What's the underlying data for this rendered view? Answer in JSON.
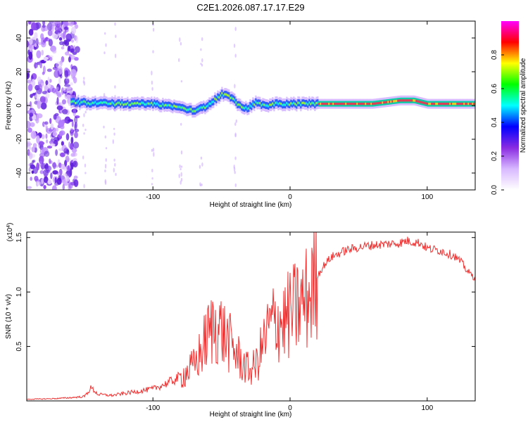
{
  "title": "C2E1.2026.087.17.17.E29",
  "chart_data": [
    {
      "type": "heatmap",
      "title": "C2E1.2026.087.17.17.E29",
      "xlabel": "Height of straight line (km)",
      "ylabel": "Frequency (Hz)",
      "xlim": [
        -192,
        135
      ],
      "ylim": [
        -50,
        50
      ],
      "x_ticks": [
        -100,
        0,
        100
      ],
      "y_ticks": [
        -40,
        -20,
        0,
        20,
        40
      ],
      "colorbar": {
        "label": "Normalized spectral amplitude",
        "range": [
          0,
          1
        ],
        "ticks": [
          0.0,
          0.2,
          0.4,
          0.6,
          0.8
        ],
        "tick_labels": [
          "0.0",
          "0.2",
          "0.4",
          "0.6",
          "0.8"
        ],
        "colors": [
          "#ffffff",
          "#d8b8ff",
          "#8a2be2",
          "#0000ff",
          "#00ffff",
          "#00ff00",
          "#ffff00",
          "#ff0000",
          "#ff00ff"
        ]
      },
      "ridge": {
        "x": [
          -160,
          -130,
          -100,
          -80,
          -70,
          -60,
          -50,
          -45,
          -40,
          -35,
          -30,
          -25,
          -20,
          -10,
          0,
          10,
          20,
          40,
          60,
          80,
          90,
          100,
          110,
          135
        ],
        "freq": [
          2,
          1,
          1,
          -1,
          -3,
          0,
          7,
          5,
          2,
          -2,
          -1,
          2,
          0,
          1,
          1,
          1,
          1,
          1,
          1,
          3,
          3,
          1,
          1,
          1
        ]
      },
      "noise_region_x": [
        -192,
        -155
      ]
    },
    {
      "type": "line",
      "xlabel": "Height of straight line (km)",
      "ylabel": "SNR (10 * v/v)",
      "scale_label": "(x10",
      "scale_exponent": "4",
      "xlim": [
        -192,
        135
      ],
      "ylim": [
        0,
        15500
      ],
      "x_ticks": [
        -100,
        0,
        100
      ],
      "y_ticks": [
        5000,
        10000,
        15000
      ],
      "y_tick_labels": [
        "0.5",
        "1.0",
        "1.5"
      ],
      "line_color": "#ee3333",
      "series": [
        {
          "name": "SNR",
          "x": [
            -192,
            -180,
            -170,
            -160,
            -150,
            -145,
            -140,
            -130,
            -120,
            -110,
            -100,
            -90,
            -80,
            -75,
            -70,
            -65,
            -60,
            -55,
            -50,
            -45,
            -40,
            -35,
            -30,
            -25,
            -20,
            -15,
            -10,
            -5,
            0,
            5,
            10,
            15,
            20,
            25,
            30,
            40,
            50,
            60,
            70,
            80,
            85,
            90,
            95,
            100,
            110,
            120,
            125,
            130,
            135
          ],
          "values": [
            150,
            180,
            220,
            300,
            400,
            1200,
            600,
            500,
            700,
            900,
            1100,
            1600,
            2200,
            2700,
            3200,
            4500,
            6000,
            7000,
            6500,
            5500,
            4500,
            3500,
            2800,
            3200,
            5000,
            6800,
            7500,
            7200,
            8000,
            8500,
            9000,
            10000,
            11500,
            12500,
            13200,
            13800,
            14100,
            14300,
            14400,
            14500,
            14700,
            14600,
            14500,
            14000,
            13800,
            13300,
            12700,
            11800,
            11300
          ]
        }
      ]
    }
  ]
}
